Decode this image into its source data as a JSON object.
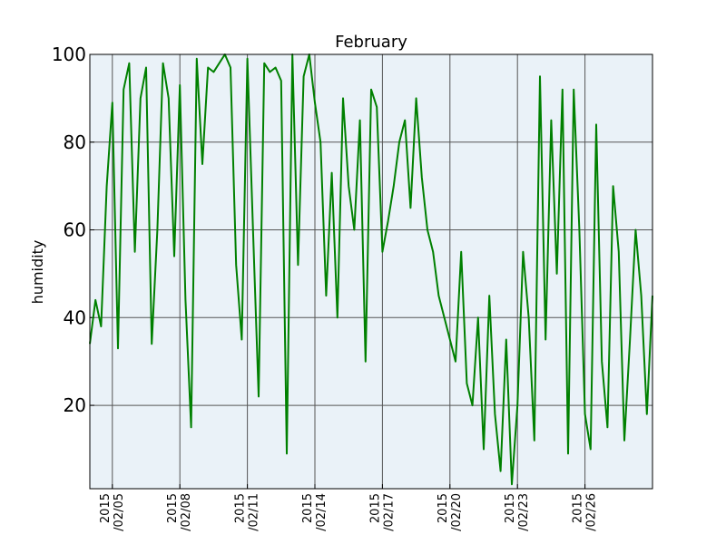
{
  "chart_data": {
    "type": "line",
    "title": "February",
    "xlabel": "",
    "ylabel": "humidity",
    "ylim": [
      1,
      100
    ],
    "xlim": [
      "2015-02-04",
      "2015-03-01"
    ],
    "grid": true,
    "colors": {
      "line": "#008000",
      "plot_background": "#eaf2f8",
      "grid": "#555555",
      "frame": "#000000"
    },
    "y_ticks": [
      20,
      40,
      60,
      80,
      100
    ],
    "x_ticks": [
      {
        "date": "2015-02-05",
        "year": "2015",
        "label": "/02/05"
      },
      {
        "date": "2015-02-08",
        "year": "2015",
        "label": "/02/08"
      },
      {
        "date": "2015-02-11",
        "year": "2015",
        "label": "/02/11"
      },
      {
        "date": "2015-02-14",
        "year": "2015",
        "label": "/02/14"
      },
      {
        "date": "2015-02-17",
        "year": "2015",
        "label": "/02/17"
      },
      {
        "date": "2015-02-20",
        "year": "2015",
        "label": "/02/20"
      },
      {
        "date": "2015-02-23",
        "year": "2015",
        "label": "/02/23"
      },
      {
        "date": "2015-02-26",
        "year": "2015",
        "label": "/02/26"
      }
    ],
    "series": [
      {
        "x": [
          "2015-02-04 00:00",
          "2015-02-04 06:00",
          "2015-02-04 12:00",
          "2015-02-04 18:00",
          "2015-02-05 00:00",
          "2015-02-05 06:00",
          "2015-02-05 12:00",
          "2015-02-05 18:00",
          "2015-02-06 00:00",
          "2015-02-06 06:00",
          "2015-02-06 12:00",
          "2015-02-06 18:00",
          "2015-02-07 00:00",
          "2015-02-07 06:00",
          "2015-02-07 12:00",
          "2015-02-07 18:00",
          "2015-02-08 00:00",
          "2015-02-08 06:00",
          "2015-02-08 12:00",
          "2015-02-08 18:00",
          "2015-02-09 00:00",
          "2015-02-09 06:00",
          "2015-02-09 12:00",
          "2015-02-09 18:00",
          "2015-02-10 00:00",
          "2015-02-10 06:00",
          "2015-02-10 12:00",
          "2015-02-10 18:00",
          "2015-02-11 00:00",
          "2015-02-11 06:00",
          "2015-02-11 12:00",
          "2015-02-11 18:00",
          "2015-02-12 00:00",
          "2015-02-12 06:00",
          "2015-02-12 12:00",
          "2015-02-12 18:00",
          "2015-02-13 00:00",
          "2015-02-13 06:00",
          "2015-02-13 12:00",
          "2015-02-13 18:00",
          "2015-02-14 00:00",
          "2015-02-14 06:00",
          "2015-02-14 12:00",
          "2015-02-14 18:00",
          "2015-02-15 00:00",
          "2015-02-15 06:00",
          "2015-02-15 12:00",
          "2015-02-15 18:00",
          "2015-02-16 00:00",
          "2015-02-16 06:00",
          "2015-02-16 12:00",
          "2015-02-16 18:00",
          "2015-02-17 00:00",
          "2015-02-17 06:00",
          "2015-02-17 12:00",
          "2015-02-17 18:00",
          "2015-02-18 00:00",
          "2015-02-18 06:00",
          "2015-02-18 12:00",
          "2015-02-18 18:00",
          "2015-02-19 00:00",
          "2015-02-19 06:00",
          "2015-02-19 12:00",
          "2015-02-19 18:00",
          "2015-02-20 00:00",
          "2015-02-20 06:00",
          "2015-02-20 12:00",
          "2015-02-20 18:00",
          "2015-02-21 00:00",
          "2015-02-21 06:00",
          "2015-02-21 12:00",
          "2015-02-21 18:00",
          "2015-02-22 00:00",
          "2015-02-22 06:00",
          "2015-02-22 12:00",
          "2015-02-22 18:00",
          "2015-02-23 00:00",
          "2015-02-23 06:00",
          "2015-02-23 12:00",
          "2015-02-23 18:00",
          "2015-02-24 00:00",
          "2015-02-24 06:00",
          "2015-02-24 12:00",
          "2015-02-24 18:00",
          "2015-02-25 00:00",
          "2015-02-25 06:00",
          "2015-02-25 12:00",
          "2015-02-25 18:00",
          "2015-02-26 00:00",
          "2015-02-26 06:00",
          "2015-02-26 12:00",
          "2015-02-26 18:00",
          "2015-02-27 00:00",
          "2015-02-27 06:00",
          "2015-02-27 12:00",
          "2015-02-27 18:00",
          "2015-02-28 00:00",
          "2015-02-28 06:00",
          "2015-02-28 12:00",
          "2015-02-28 18:00",
          "2015-03-01 00:00"
        ],
        "y": [
          34,
          44,
          38,
          70,
          89,
          33,
          92,
          98,
          55,
          90,
          97,
          34,
          60,
          98,
          90,
          54,
          93,
          44,
          15,
          99,
          75,
          97,
          96,
          98,
          100,
          97,
          52,
          35,
          99,
          60,
          22,
          98,
          96,
          97,
          94,
          9,
          100,
          52,
          95,
          100,
          89,
          80,
          45,
          73,
          40,
          90,
          70,
          60,
          85,
          30,
          92,
          88,
          55,
          62,
          70,
          80,
          85,
          65,
          90,
          72,
          60,
          55,
          45,
          40,
          35,
          30,
          55,
          25,
          20,
          40,
          10,
          45,
          18,
          5,
          35,
          2,
          20,
          55,
          40,
          12,
          95,
          35,
          85,
          50,
          92,
          9,
          92,
          60,
          18,
          10,
          84,
          30,
          15,
          70,
          55,
          12,
          35,
          60,
          45,
          18,
          45
        ]
      }
    ]
  }
}
